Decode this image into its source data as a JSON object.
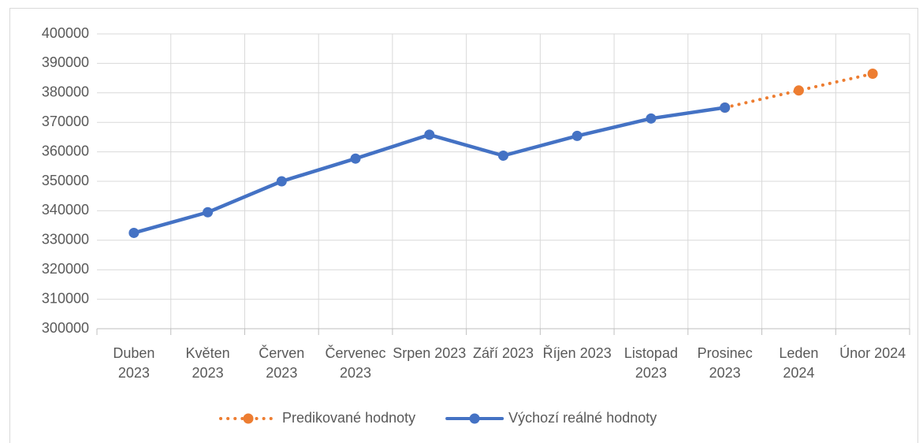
{
  "chart_data": {
    "type": "line",
    "categories": [
      "Duben 2023",
      "Květen 2023",
      "Červen 2023",
      "Červenec 2023",
      "Srpen 2023",
      "Září 2023",
      "Říjen 2023",
      "Listopad 2023",
      "Prosinec 2023",
      "Leden 2024",
      "Únor 2024"
    ],
    "series": [
      {
        "name": "Predikované hodnoty",
        "color": "#ed7d31",
        "dash": "dotted",
        "values": [
          null,
          null,
          null,
          null,
          null,
          null,
          null,
          null,
          375000,
          380800,
          386500
        ]
      },
      {
        "name": "Výchozí reálné hodnoty",
        "color": "#4472c4",
        "dash": "solid",
        "values": [
          332500,
          339500,
          350000,
          357700,
          365800,
          358700,
          365400,
          371300,
          375000,
          null,
          null
        ]
      }
    ],
    "ylim": [
      300000,
      400000
    ],
    "yticks": [
      300000,
      310000,
      320000,
      330000,
      340000,
      350000,
      360000,
      370000,
      380000,
      390000,
      400000
    ],
    "grid": true,
    "legend": "bottom"
  }
}
